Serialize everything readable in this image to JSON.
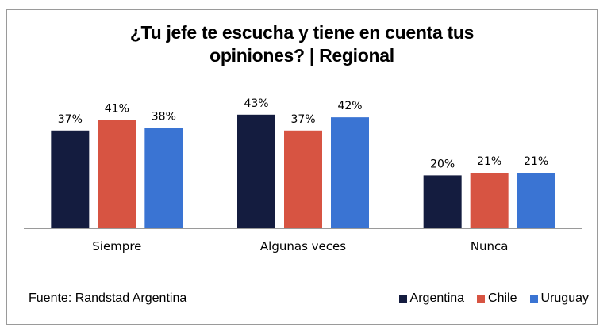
{
  "chart_data": {
    "type": "bar",
    "title": "¿Tu jefe te escucha y tiene en cuenta tus opiniones? | Regional",
    "title_lines": [
      "¿Tu jefe te escucha y tiene en cuenta tus",
      "opiniones? | Regional"
    ],
    "categories": [
      "Siempre",
      "Algunas veces",
      "Nunca"
    ],
    "series": [
      {
        "name": "Argentina",
        "color": "#141c3f",
        "values": [
          37,
          43,
          20
        ]
      },
      {
        "name": "Chile",
        "color": "#d75442",
        "values": [
          41,
          37,
          21
        ]
      },
      {
        "name": "Uruguay",
        "color": "#3a74d3",
        "values": [
          38,
          42,
          21
        ]
      }
    ],
    "value_suffix": "%",
    "xlabel": "",
    "ylabel": "",
    "ylim": [
      0,
      45
    ],
    "grid": false,
    "legend_position": "bottom-right",
    "source": "Fuente: Randstad Argentina"
  }
}
